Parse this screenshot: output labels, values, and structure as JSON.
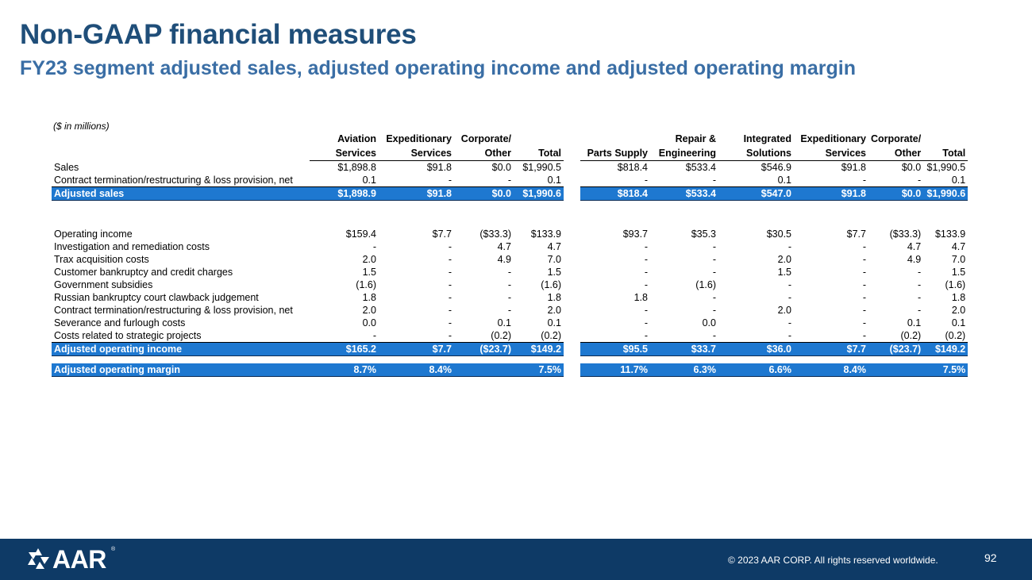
{
  "slide": {
    "title": "Non-GAAP financial measures",
    "subtitle": "FY23 segment adjusted sales, adjusted operating income and adjusted operating margin"
  },
  "table": {
    "units": "($ in millions)",
    "headers_top": [
      "Aviation",
      "Expeditionary",
      "Corporate/",
      "",
      "",
      "Repair &",
      "Integrated",
      "Expeditionary",
      "Corporate/",
      ""
    ],
    "headers_bottom": [
      "Services",
      "Services",
      "Other",
      "Total",
      "Parts Supply",
      "Engineering",
      "Solutions",
      "Services",
      "Other",
      "Total"
    ],
    "rows": [
      {
        "label": "Sales",
        "values": [
          "$1,898.8",
          "$91.8",
          "$0.0",
          "$1,990.5",
          "$818.4",
          "$533.4",
          "$546.9",
          "$91.8",
          "$0.0",
          "$1,990.5"
        ]
      },
      {
        "label": "Contract termination/restructuring & loss provision, net",
        "values": [
          "0.1",
          "-",
          "-",
          "0.1",
          "-",
          "-",
          "0.1",
          "-",
          "-",
          "0.1"
        ]
      },
      {
        "label": "Adjusted sales",
        "values": [
          "$1,898.9",
          "$91.8",
          "$0.0",
          "$1,990.6",
          "$818.4",
          "$533.4",
          "$547.0",
          "$91.8",
          "$0.0",
          "$1,990.6"
        ]
      },
      {
        "label": "Operating income",
        "values": [
          "$159.4",
          "$7.7",
          "($33.3)",
          "$133.9",
          "$93.7",
          "$35.3",
          "$30.5",
          "$7.7",
          "($33.3)",
          "$133.9"
        ]
      },
      {
        "label": "Investigation and remediation costs",
        "values": [
          "-",
          "-",
          "4.7",
          "4.7",
          "-",
          "-",
          "-",
          "-",
          "4.7",
          "4.7"
        ]
      },
      {
        "label": "Trax acquisition costs",
        "values": [
          "2.0",
          "-",
          "4.9",
          "7.0",
          "-",
          "-",
          "2.0",
          "-",
          "4.9",
          "7.0"
        ]
      },
      {
        "label": "Customer bankruptcy and credit charges",
        "values": [
          "1.5",
          "-",
          "-",
          "1.5",
          "-",
          "-",
          "1.5",
          "-",
          "-",
          "1.5"
        ]
      },
      {
        "label": "Government subsidies",
        "values": [
          "(1.6)",
          "-",
          "-",
          "(1.6)",
          "-",
          "(1.6)",
          "-",
          "-",
          "-",
          "(1.6)"
        ]
      },
      {
        "label": "Russian bankruptcy court clawback judgement",
        "values": [
          "1.8",
          "-",
          "-",
          "1.8",
          "1.8",
          "-",
          "-",
          "-",
          "-",
          "1.8"
        ]
      },
      {
        "label": "Contract termination/restructuring & loss provision, net",
        "values": [
          "2.0",
          "-",
          "-",
          "2.0",
          "-",
          "-",
          "2.0",
          "-",
          "-",
          "2.0"
        ]
      },
      {
        "label": "Severance and furlough costs",
        "values": [
          "0.0",
          "-",
          "0.1",
          "0.1",
          "-",
          "0.0",
          "-",
          "-",
          "0.1",
          "0.1"
        ]
      },
      {
        "label": "Costs related to strategic projects",
        "values": [
          "-",
          "-",
          "(0.2)",
          "(0.2)",
          "-",
          "-",
          "-",
          "-",
          "(0.2)",
          "(0.2)"
        ]
      },
      {
        "label": "Adjusted operating income",
        "values": [
          "$165.2",
          "$7.7",
          "($23.7)",
          "$149.2",
          "$95.5",
          "$33.7",
          "$36.0",
          "$7.7",
          "($23.7)",
          "$149.2"
        ]
      },
      {
        "label": "Adjusted operating margin",
        "values": [
          "8.7%",
          "8.4%",
          "",
          "7.5%",
          "11.7%",
          "6.3%",
          "6.6%",
          "8.4%",
          "",
          "7.5%"
        ]
      }
    ]
  },
  "footer": {
    "logo_text": "AAR",
    "logo_mark": "®",
    "copyright": "© 2023 AAR CORP. All rights reserved worldwide.",
    "page_number": "92"
  },
  "colors": {
    "title": "#1f4e79",
    "subtitle": "#3a6ea5",
    "highlight_row": "#1e78d0",
    "footer_bg": "#0e3a66"
  }
}
